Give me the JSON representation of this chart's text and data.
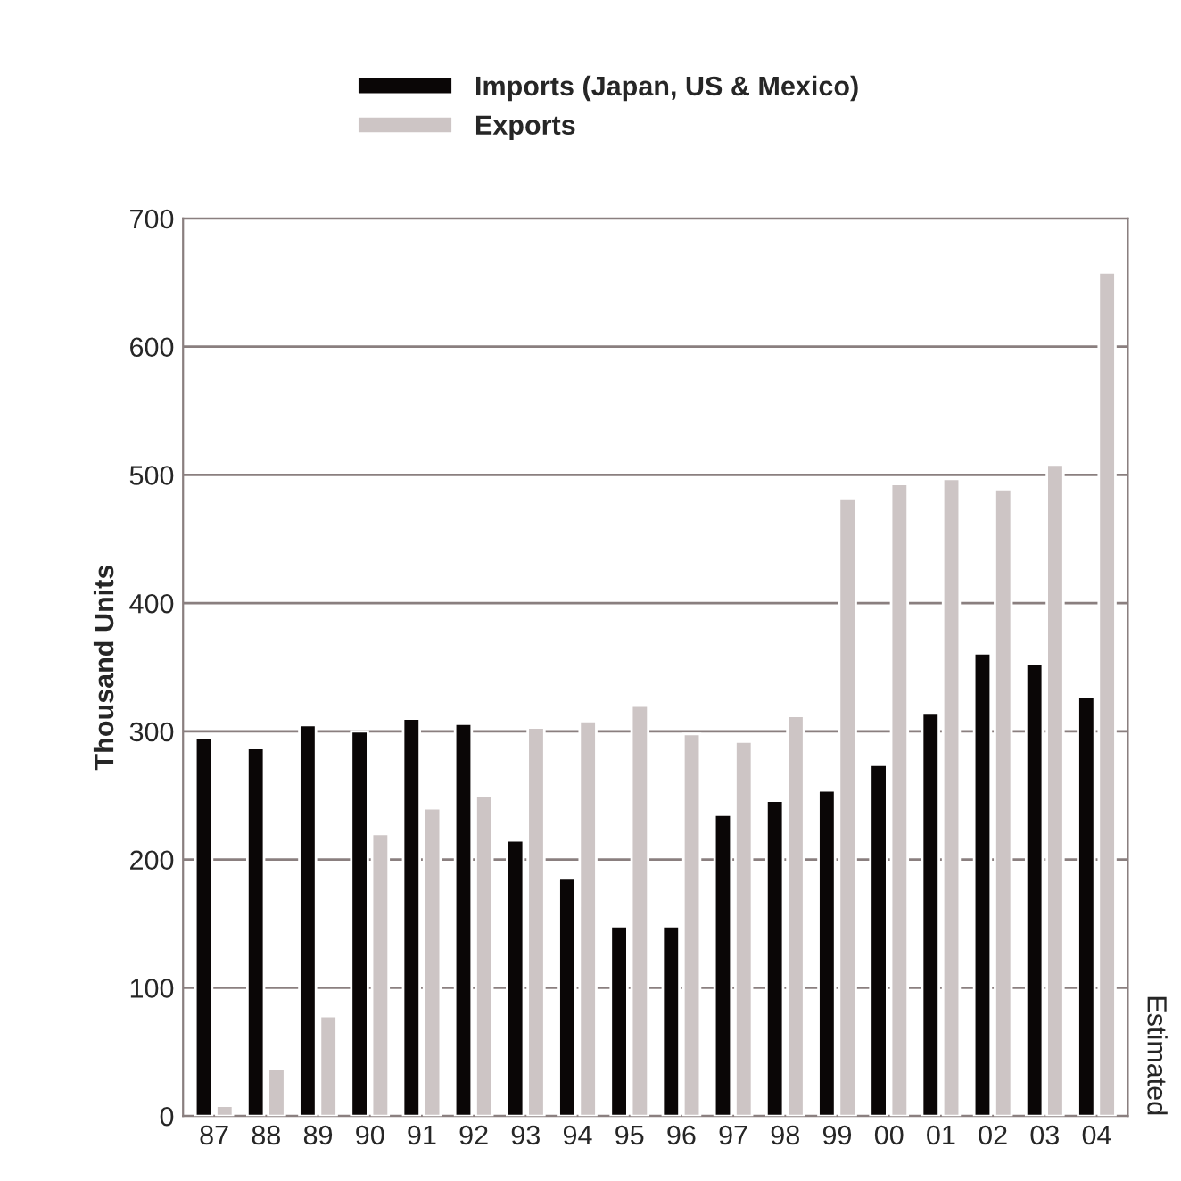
{
  "chart_data": {
    "type": "bar",
    "ylabel": "Thousand Units",
    "categories": [
      "87",
      "88",
      "89",
      "90",
      "91",
      "92",
      "93",
      "94",
      "95",
      "96",
      "97",
      "98",
      "99",
      "00",
      "01",
      "02",
      "03",
      "04"
    ],
    "series": [
      {
        "name": "Imports (Japan, US & Mexico)",
        "color": "#0a0606",
        "values": [
          295,
          287,
          305,
          300,
          310,
          306,
          215,
          186,
          148,
          148,
          235,
          246,
          254,
          274,
          314,
          361,
          353,
          327
        ]
      },
      {
        "name": "Exports",
        "color": "#cdc5c5",
        "values": [
          8,
          37,
          78,
          220,
          240,
          250,
          303,
          308,
          320,
          298,
          292,
          312,
          482,
          493,
          497,
          489,
          508,
          658
        ]
      }
    ],
    "ylim": [
      0,
      700
    ],
    "yticks": [
      0,
      100,
      200,
      300,
      400,
      500,
      600,
      700
    ],
    "grid": "y",
    "legend": "top",
    "annotations": [
      "Estimated"
    ]
  }
}
